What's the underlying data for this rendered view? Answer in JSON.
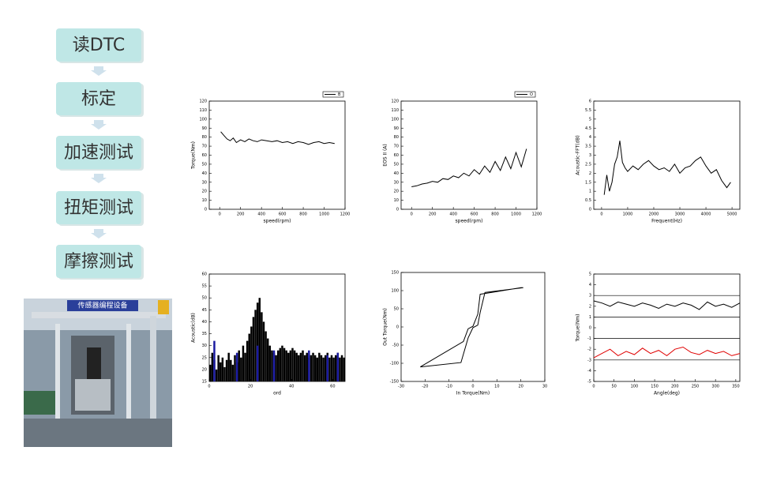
{
  "flow": {
    "steps": [
      "读DTC",
      "标定",
      "加速测试",
      "扭矩测试",
      "摩擦测试"
    ]
  },
  "photo": {
    "sign": "传感器编程设备"
  },
  "charts": [
    {
      "type": "line",
      "xlabel": "speed(rpm)",
      "ylabel": "Torque(Nm)",
      "xlim": [
        -100,
        1200
      ],
      "xticks": [
        0,
        200,
        400,
        600,
        800,
        1000,
        1200
      ],
      "ylim": [
        0,
        120
      ],
      "yticks": [
        0,
        10,
        20,
        30,
        40,
        50,
        60,
        70,
        80,
        90,
        100,
        110,
        120
      ],
      "series": [
        {
          "name": "B",
          "color": "#000000",
          "x": [
            10,
            40,
            70,
            100,
            130,
            160,
            200,
            240,
            280,
            320,
            360,
            400,
            450,
            500,
            550,
            600,
            650,
            700,
            750,
            800,
            850,
            900,
            950,
            1000,
            1050,
            1100
          ],
          "values": [
            86,
            82,
            78,
            76,
            79,
            74,
            77,
            75,
            78,
            76,
            75,
            77,
            76,
            75,
            76,
            74,
            75,
            73,
            75,
            74,
            72,
            74,
            75,
            73,
            74,
            73
          ]
        }
      ]
    },
    {
      "type": "line",
      "xlabel": "speed(rpm)",
      "ylabel": "EOS II (A)",
      "xlim": [
        -100,
        1200
      ],
      "xticks": [
        0,
        200,
        400,
        600,
        800,
        1000,
        1200
      ],
      "ylim": [
        0,
        120
      ],
      "yticks": [
        0,
        10,
        20,
        30,
        40,
        50,
        60,
        70,
        80,
        90,
        100,
        110,
        120
      ],
      "series": [
        {
          "name": "O",
          "color": "#000000",
          "x": [
            0,
            50,
            100,
            150,
            200,
            250,
            300,
            350,
            400,
            450,
            500,
            550,
            600,
            650,
            700,
            750,
            800,
            850,
            900,
            950,
            1000,
            1050,
            1100
          ],
          "values": [
            25,
            26,
            28,
            29,
            31,
            30,
            34,
            33,
            37,
            35,
            40,
            37,
            44,
            39,
            48,
            41,
            53,
            43,
            58,
            45,
            63,
            47,
            67
          ]
        }
      ]
    },
    {
      "type": "line",
      "xlabel": "Frequent(Hz)",
      "ylabel": "Acoustic-FFT(dB)",
      "xlim": [
        -300,
        5300
      ],
      "xticks": [
        0,
        1000,
        2000,
        3000,
        4000,
        5000
      ],
      "ylim": [
        0,
        6
      ],
      "yticks": [
        0,
        0.5,
        1,
        1.5,
        2,
        2.5,
        3,
        3.5,
        4,
        4.5,
        5,
        5.5,
        6
      ],
      "series": [
        {
          "color": "#000000",
          "x": [
            100,
            200,
            300,
            400,
            500,
            600,
            700,
            800,
            900,
            1000,
            1200,
            1400,
            1600,
            1800,
            2000,
            2200,
            2400,
            2600,
            2800,
            3000,
            3200,
            3400,
            3600,
            3800,
            4000,
            4200,
            4400,
            4600,
            4800,
            4950
          ],
          "values": [
            0.8,
            1.9,
            1.0,
            1.5,
            2.5,
            2.9,
            3.8,
            2.6,
            2.3,
            2.1,
            2.4,
            2.2,
            2.5,
            2.7,
            2.4,
            2.2,
            2.3,
            2.1,
            2.5,
            2.0,
            2.3,
            2.4,
            2.7,
            2.9,
            2.4,
            2.0,
            2.2,
            1.6,
            1.2,
            1.5
          ]
        }
      ]
    },
    {
      "type": "bar",
      "xlabel": "ord",
      "ylabel": "Acoustic(dB)",
      "xlim": [
        0,
        66
      ],
      "xticks": [
        0,
        20,
        40,
        60
      ],
      "ylim": [
        15,
        60
      ],
      "yticks": [
        15,
        20,
        25,
        30,
        35,
        40,
        45,
        50,
        55,
        60
      ],
      "series": [
        {
          "color": "#000000",
          "x": [
            0,
            1,
            2,
            3,
            4,
            5,
            6,
            7,
            8,
            9,
            10,
            11,
            12,
            13,
            14,
            15,
            16,
            17,
            18,
            19,
            20,
            21,
            22,
            23,
            24,
            25,
            26,
            27,
            28,
            29,
            30,
            31,
            32,
            33,
            34,
            35,
            36,
            37,
            38,
            39,
            40,
            41,
            42,
            43,
            44,
            45,
            46,
            47,
            48,
            49,
            50,
            51,
            52,
            53,
            54,
            55,
            56,
            57,
            58,
            59,
            60,
            61,
            62,
            63,
            64,
            65
          ],
          "values": [
            22,
            27,
            24,
            20,
            26,
            23,
            25,
            21,
            24,
            27,
            24,
            22,
            26,
            23,
            28,
            25,
            30,
            27,
            32,
            35,
            38,
            42,
            45,
            48,
            50,
            44,
            40,
            36,
            33,
            30,
            28,
            27,
            26,
            28,
            29,
            30,
            29,
            28,
            27,
            28,
            29,
            28,
            27,
            26,
            27,
            28,
            26,
            27,
            25,
            26,
            27,
            26,
            25,
            27,
            26,
            25,
            26,
            27,
            25,
            26,
            25,
            26,
            27,
            25,
            26,
            25
          ]
        },
        {
          "color": "#1a1aa0",
          "x": [
            2,
            13,
            23,
            31,
            48,
            57,
            62
          ],
          "values": [
            32,
            27,
            30,
            28,
            28,
            26,
            27
          ]
        }
      ]
    },
    {
      "type": "line",
      "xlabel": "In Torque(Nm)",
      "ylabel": "Out Torque(Nm)",
      "xlim": [
        -30,
        30
      ],
      "xticks": [
        -30,
        -20,
        -10,
        0,
        10,
        20,
        30
      ],
      "ylim": [
        -150,
        150
      ],
      "yticks": [
        -150,
        -100,
        -50,
        0,
        50,
        100,
        150
      ],
      "series": [
        {
          "color": "#000000",
          "x": [
            -22,
            -5,
            -2,
            0,
            2,
            3,
            5,
            21,
            20,
            3,
            2,
            0,
            -2,
            -4,
            -22
          ],
          "values": [
            -110,
            -98,
            -30,
            -2,
            5,
            40,
            95,
            108,
            108,
            90,
            35,
            2,
            -5,
            -40,
            -110
          ]
        }
      ]
    },
    {
      "type": "line",
      "xlabel": "Angle(deg)",
      "ylabel": "Torque(Nm)",
      "xlim": [
        0,
        360
      ],
      "xticks": [
        0,
        50,
        100,
        150,
        200,
        250,
        300,
        350
      ],
      "ylim": [
        -5,
        5
      ],
      "yticks": [
        -5,
        -4,
        -3,
        -2,
        -1,
        0,
        1,
        2,
        3,
        4,
        5
      ],
      "limits": [
        3,
        1,
        -1,
        -3
      ],
      "series": [
        {
          "color": "#000000",
          "x": [
            0,
            20,
            40,
            60,
            80,
            100,
            120,
            140,
            160,
            180,
            200,
            220,
            240,
            260,
            280,
            300,
            320,
            340,
            360
          ],
          "values": [
            2.5,
            2.3,
            2.0,
            2.4,
            2.2,
            2.0,
            2.3,
            2.1,
            1.8,
            2.2,
            2.0,
            2.3,
            2.1,
            1.7,
            2.4,
            2.0,
            2.2,
            1.9,
            2.3
          ]
        },
        {
          "color": "#e00000",
          "x": [
            0,
            20,
            40,
            60,
            80,
            100,
            120,
            140,
            160,
            180,
            200,
            220,
            240,
            260,
            280,
            300,
            320,
            340,
            360
          ],
          "values": [
            -2.8,
            -2.4,
            -2.0,
            -2.6,
            -2.2,
            -2.5,
            -1.9,
            -2.4,
            -2.1,
            -2.6,
            -2.0,
            -1.8,
            -2.3,
            -2.5,
            -2.1,
            -2.4,
            -2.2,
            -2.6,
            -2.4
          ]
        }
      ]
    }
  ]
}
